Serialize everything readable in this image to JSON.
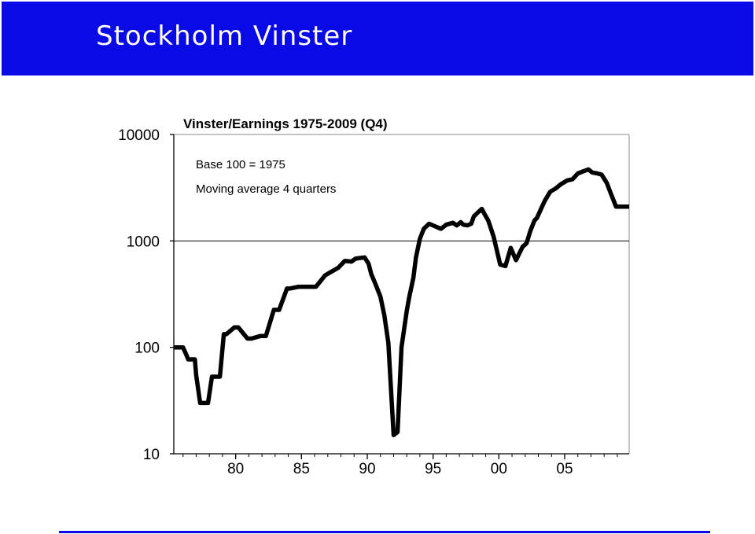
{
  "slide": {
    "title": "Stockholm  Vinster",
    "accent_color": "#0a0ae6"
  },
  "chart_data": {
    "type": "line",
    "title": "Vinster/Earnings 1975-2009 (Q4)",
    "annotations": [
      "Base 100 = 1975",
      "Moving average 4 quarters"
    ],
    "yscale": "log",
    "ylim": [
      10,
      10000
    ],
    "ytick_labels": [
      "10",
      "100",
      "1000",
      "10000"
    ],
    "ytick_values": [
      10,
      100,
      1000,
      10000
    ],
    "xlim": [
      1975.3,
      2009.9
    ],
    "xtick_labels": [
      "80",
      "85",
      "90",
      "95",
      "00",
      "05"
    ],
    "xtick_values": [
      1980,
      1985,
      1990,
      1995,
      2000,
      2005
    ],
    "grid": "horizontal at 1000 only",
    "line_color": "#000000",
    "series": [
      {
        "x": [
          1975.3,
          1976.0,
          1976.2,
          1976.4,
          1976.9,
          1977.0,
          1977.3,
          1977.9,
          1978.2,
          1978.8,
          1979.1,
          1979.3,
          1979.9,
          1980.2,
          1980.9,
          1981.2,
          1981.9,
          1982.3,
          1982.9,
          1983.3,
          1983.9,
          1984.1,
          1984.8,
          1985.1,
          1985.8,
          1986.1,
          1986.8,
          1987.1,
          1987.8,
          1988.3,
          1988.8,
          1989.1,
          1989.4,
          1989.8,
          1990.1,
          1990.3,
          1990.6,
          1991.0,
          1991.3,
          1991.6,
          1992.0,
          1992.3,
          1992.6,
          1993.0,
          1993.2,
          1993.5,
          1993.7,
          1994.0,
          1994.3,
          1994.7,
          1995.1,
          1995.6,
          1996.0,
          1996.5,
          1996.8,
          1997.1,
          1997.3,
          1997.6,
          1997.9,
          1998.1,
          1998.4,
          1998.7,
          1998.9,
          1999.2,
          1999.6,
          2000.1,
          2000.5,
          2000.9,
          2001.3,
          2001.8,
          2002.1,
          2002.4,
          2002.7,
          2002.9,
          2003.2,
          2003.5,
          2003.9,
          2004.3,
          2004.7,
          2005.2,
          2005.6,
          2006.0,
          2006.4,
          2006.8,
          2007.1,
          2007.5,
          2007.8,
          2008.2,
          2008.5,
          2008.9,
          2009.3,
          2009.6,
          2009.9
        ],
        "y": [
          100,
          100,
          88,
          77,
          77,
          55,
          30,
          30,
          53,
          53,
          133,
          133,
          154,
          154,
          121,
          121,
          128,
          128,
          225,
          225,
          357,
          357,
          371,
          371,
          371,
          371,
          475,
          500,
          560,
          650,
          640,
          680,
          690,
          700,
          610,
          490,
          400,
          300,
          200,
          110,
          15,
          16,
          100,
          220,
          300,
          450,
          700,
          1050,
          1300,
          1450,
          1380,
          1300,
          1420,
          1480,
          1400,
          1500,
          1420,
          1400,
          1450,
          1700,
          1850,
          2000,
          1800,
          1550,
          1100,
          600,
          580,
          860,
          660,
          880,
          950,
          1250,
          1550,
          1650,
          2000,
          2400,
          2900,
          3100,
          3400,
          3700,
          3800,
          4300,
          4500,
          4700,
          4400,
          4300,
          4200,
          3500,
          2800,
          2100,
          2100,
          2100,
          2100
        ]
      }
    ]
  }
}
